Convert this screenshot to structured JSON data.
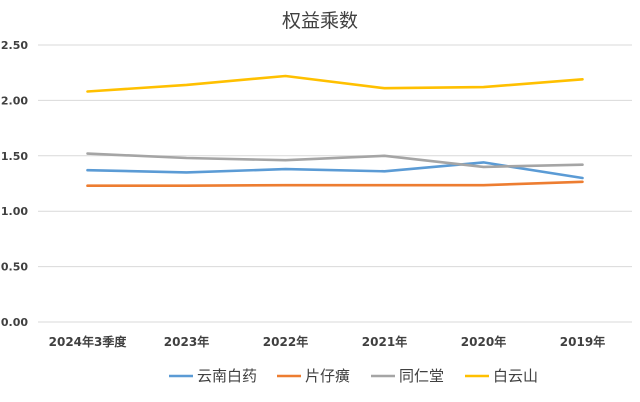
{
  "chart_data": {
    "type": "line",
    "title": "权益乘数",
    "categories": [
      "2024年3季度",
      "2023年",
      "2022年",
      "2021年",
      "2020年",
      "2019年"
    ],
    "ylim": [
      0,
      2.5
    ],
    "yticks": [
      "0.00",
      "0.50",
      "1.00",
      "1.50",
      "2.00",
      "2.50"
    ],
    "grid": true,
    "legend_position": "bottom",
    "series": [
      {
        "name": "云南白药",
        "color": "#5b9bd5",
        "values": [
          1.37,
          1.35,
          1.38,
          1.36,
          1.44,
          1.3
        ]
      },
      {
        "name": "片仔癀",
        "color": "#ed7d31",
        "values": [
          1.23,
          1.23,
          1.235,
          1.235,
          1.235,
          1.265
        ]
      },
      {
        "name": "同仁堂",
        "color": "#a5a5a5",
        "values": [
          1.52,
          1.48,
          1.46,
          1.5,
          1.4,
          1.42
        ]
      },
      {
        "name": "白云山",
        "color": "#ffc000",
        "values": [
          2.08,
          2.14,
          2.22,
          2.11,
          2.12,
          2.19
        ]
      }
    ]
  }
}
